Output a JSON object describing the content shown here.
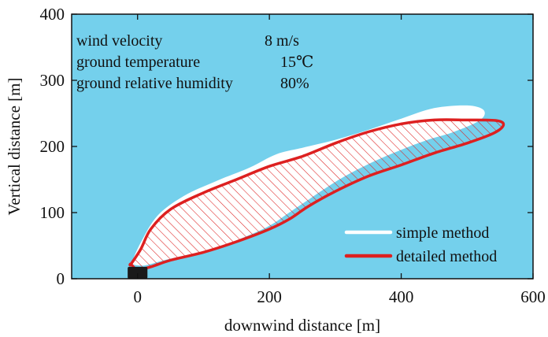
{
  "chart_data": {
    "type": "area",
    "title": "",
    "xlabel": "downwind distance [m]",
    "ylabel": "Vertical distance [m]",
    "xlim": [
      -100,
      600
    ],
    "ylim": [
      0,
      400
    ],
    "xticks": [
      0,
      200,
      400,
      600
    ],
    "yticks": [
      0,
      100,
      200,
      300,
      400
    ],
    "xtick_labels": [
      "0",
      "200",
      "400",
      "600"
    ],
    "ytick_labels": [
      "0",
      "100",
      "200",
      "300",
      "400"
    ],
    "grid": false,
    "legend_position": "bottom-right",
    "background_color": "#74D0EC",
    "annotations": [
      {
        "label": "wind velocity",
        "value": "8 m/s"
      },
      {
        "label": "ground temperature",
        "value": "15℃"
      },
      {
        "label": "ground relative humidity",
        "value": "80%"
      }
    ],
    "source_marker": {
      "x": [
        -15,
        15
      ],
      "y": [
        0,
        18
      ],
      "color": "#1a1a1a"
    },
    "series": [
      {
        "name": "simple method",
        "color": "#ffffff",
        "style": "filled",
        "x": [
          -10,
          5,
          30,
          70,
          120,
          170,
          210,
          250,
          300,
          350,
          400,
          450,
          500,
          525,
          520,
          480,
          440,
          400,
          360,
          320,
          290,
          260,
          230,
          200,
          160,
          120,
          80,
          40,
          10,
          -10
        ],
        "y": [
          22,
          55,
          95,
          125,
          148,
          168,
          188,
          198,
          210,
          225,
          242,
          258,
          262,
          255,
          240,
          222,
          210,
          195,
          178,
          158,
          140,
          120,
          100,
          80,
          62,
          47,
          37,
          28,
          20,
          22
        ]
      },
      {
        "name": "detailed method",
        "color": "#dd2020",
        "style": "hatched",
        "x": [
          -10,
          5,
          20,
          50,
          100,
          150,
          200,
          250,
          300,
          350,
          400,
          450,
          500,
          545,
          555,
          540,
          500,
          450,
          400,
          350,
          300,
          260,
          230,
          200,
          150,
          100,
          50,
          20,
          0,
          -10
        ],
        "y": [
          22,
          45,
          75,
          105,
          130,
          150,
          170,
          185,
          205,
          222,
          234,
          240,
          240,
          239,
          232,
          220,
          205,
          190,
          172,
          155,
          132,
          110,
          90,
          75,
          56,
          40,
          28,
          18,
          14,
          22
        ]
      }
    ]
  }
}
